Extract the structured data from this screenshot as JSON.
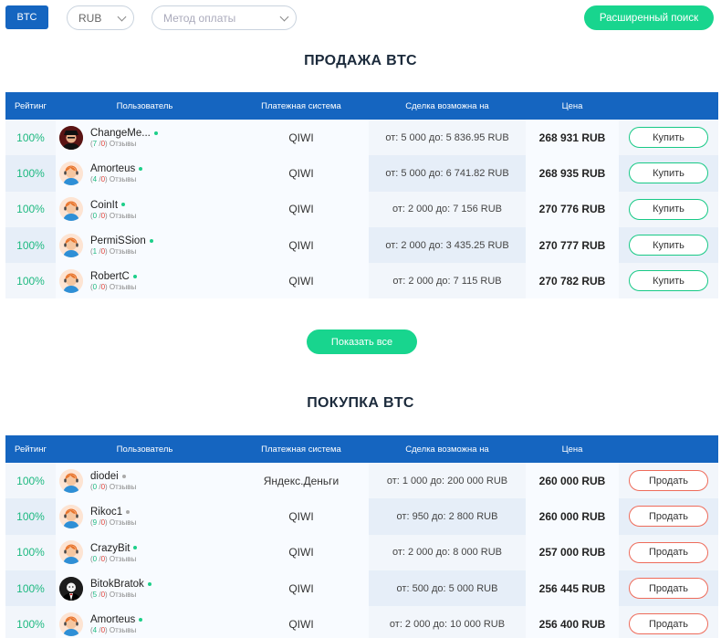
{
  "filters": {
    "crypto_label": "BTC",
    "currency_value": "RUB",
    "method_placeholder": "Метод оплаты",
    "advanced_search_label": "Расширенный поиск"
  },
  "columns": {
    "rating": "Рейтинг",
    "user": "Пользователь",
    "payment": "Платежная система",
    "deal": "Сделка возможна на",
    "price": "Цена"
  },
  "sell": {
    "title": "ПРОДАЖА BTC",
    "action_label": "Купить",
    "rows": [
      {
        "rating": "100%",
        "name": "ChangeMe...",
        "online": true,
        "avatar": "person-dark-hat-icon",
        "reviews_pos": "7",
        "reviews_neg": "0",
        "reviews_label": "Отзывы",
        "payment": "QIWI",
        "range": "от: 5 000 до: 5 836.95 RUB",
        "price": "268 931 RUB"
      },
      {
        "rating": "100%",
        "name": "Amorteus",
        "online": true,
        "avatar": "support-agent-icon",
        "reviews_pos": "4",
        "reviews_neg": "0",
        "reviews_label": "Отзывы",
        "payment": "QIWI",
        "range": "от: 5 000 до: 6 741.82 RUB",
        "price": "268 935 RUB"
      },
      {
        "rating": "100%",
        "name": "CoinIt",
        "online": true,
        "avatar": "support-agent-icon",
        "reviews_pos": "0",
        "reviews_neg": "0",
        "reviews_label": "Отзывы",
        "payment": "QIWI",
        "range": "от: 2 000 до: 7 156 RUB",
        "price": "270 776 RUB"
      },
      {
        "rating": "100%",
        "name": "PermiSSion",
        "online": true,
        "avatar": "support-agent-icon",
        "reviews_pos": "1",
        "reviews_neg": "0",
        "reviews_label": "Отзывы",
        "payment": "QIWI",
        "range": "от: 2 000 до: 3 435.25 RUB",
        "price": "270 777 RUB"
      },
      {
        "rating": "100%",
        "name": "RobertC",
        "online": true,
        "avatar": "support-agent-icon",
        "reviews_pos": "0",
        "reviews_neg": "0",
        "reviews_label": "Отзывы",
        "payment": "QIWI",
        "range": "от: 2 000 до: 7 115 RUB",
        "price": "270 782 RUB"
      }
    ]
  },
  "show_all_label": "Показать все",
  "buy": {
    "title": "ПОКУПКА BTC",
    "action_label": "Продать",
    "rows": [
      {
        "rating": "100%",
        "name": "diodei",
        "online": false,
        "avatar": "support-agent-icon",
        "reviews_pos": "0",
        "reviews_neg": "0",
        "reviews_label": "Отзывы",
        "payment": "Яндекс.Деньги",
        "range": "от: 1 000 до: 200 000 RUB",
        "price": "260 000 RUB"
      },
      {
        "rating": "100%",
        "name": "Rikoc1",
        "online": false,
        "avatar": "support-agent-icon",
        "reviews_pos": "9",
        "reviews_neg": "0",
        "reviews_label": "Отзывы",
        "payment": "QIWI",
        "range": "от: 950 до: 2 800 RUB",
        "price": "260 000 RUB"
      },
      {
        "rating": "100%",
        "name": "CrazyBit",
        "online": true,
        "avatar": "support-agent-icon",
        "reviews_pos": "0",
        "reviews_neg": "0",
        "reviews_label": "Отзывы",
        "payment": "QIWI",
        "range": "от: 2 000 до: 8 000 RUB",
        "price": "257 000 RUB"
      },
      {
        "rating": "100%",
        "name": "BitokBratok",
        "online": true,
        "avatar": "tuxedo-person-icon",
        "reviews_pos": "5",
        "reviews_neg": "0",
        "reviews_label": "Отзывы",
        "payment": "QIWI",
        "range": "от: 500 до: 5 000 RUB",
        "price": "256 445 RUB"
      },
      {
        "rating": "100%",
        "name": "Amorteus",
        "online": true,
        "avatar": "support-agent-icon",
        "reviews_pos": "4",
        "reviews_neg": "0",
        "reviews_label": "Отзывы",
        "payment": "QIWI",
        "range": "от: 2 000 до: 10 000 RUB",
        "price": "256 400 RUB"
      }
    ]
  }
}
